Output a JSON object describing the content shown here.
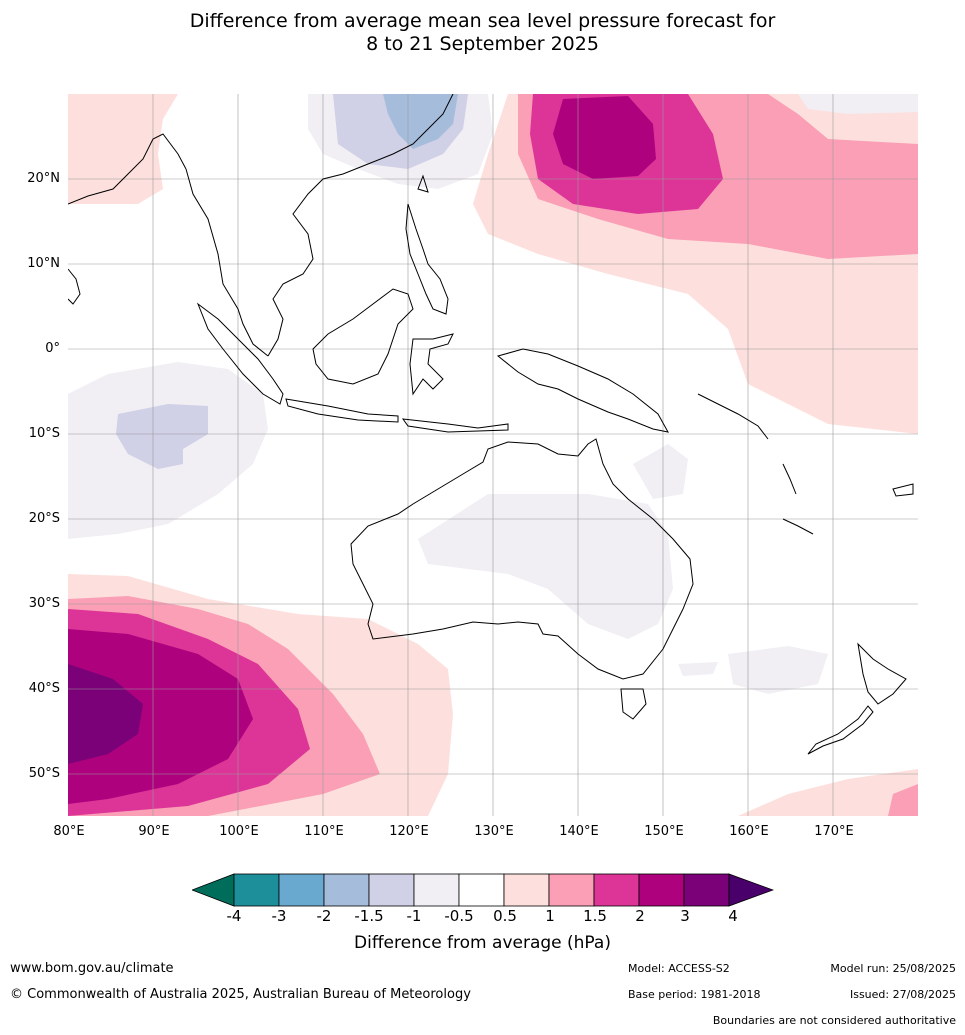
{
  "title": {
    "line1": "Difference from average mean sea level pressure forecast for",
    "line2": "8 to 21 September 2025"
  },
  "map": {
    "projection": "equirectangular",
    "lon_range": [
      80,
      180
    ],
    "lat_range": [
      -55,
      30
    ],
    "lat_labels": [
      "20°N",
      "10°N",
      "0°",
      "10°S",
      "20°S",
      "30°S",
      "40°S",
      "50°S"
    ],
    "lon_labels": [
      "80°E",
      "90°E",
      "100°E",
      "110°E",
      "120°E",
      "130°E",
      "140°E",
      "150°E",
      "160°E",
      "170°E"
    ],
    "gridlines": true
  },
  "colorbar": {
    "label": "Difference from average (hPa)",
    "ticks": [
      "-4",
      "-3",
      "-2",
      "-1.5",
      "-1",
      "-0.5",
      "0.5",
      "1",
      "1.5",
      "2",
      "3",
      "4"
    ],
    "colors": {
      "below_-4": "#006c5a",
      "-4_-3": "#1c8f9a",
      "-3_-2": "#6aa9cf",
      "-2_-1.5": "#a6bcdb",
      "-1.5_-1": "#d0d0e6",
      "-1_-0.5": "#f1eef4",
      "-0.5_0.5": "#ffffff",
      "0.5_1": "#fde0dd",
      "1_1.5": "#fa9fb5",
      "1.5_2": "#dd3497",
      "2_3": "#ae017e",
      "3_4": "#7a0177",
      "above_4": "#49006a"
    }
  },
  "footer": {
    "website": "www.bom.gov.au/climate",
    "copyright": "© Commonwealth of Australia 2025, Australian Bureau of Meteorology",
    "model": "Model: ACCESS-S2",
    "base_period": "Base period: 1981-2018",
    "model_run": "Model run: 25/08/2025",
    "issued": "Issued: 27/08/2025",
    "disclaimer": "Boundaries are not considered authoritative"
  }
}
